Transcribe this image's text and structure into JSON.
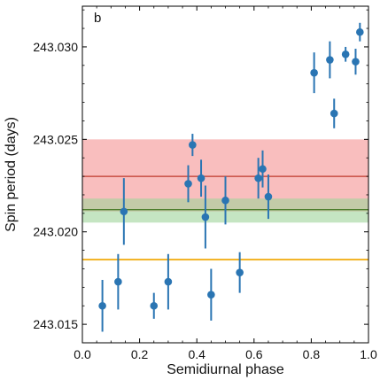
{
  "chart_data": {
    "type": "scatter",
    "panel_label": "b",
    "xlabel": "Semidiurnal phase",
    "ylabel": "Spin period (days)",
    "xlim": [
      0.0,
      1.0
    ],
    "ylim": [
      243.014,
      243.0322
    ],
    "x_ticks": [
      0.0,
      0.2,
      0.4,
      0.6,
      0.8,
      1.0
    ],
    "x_tick_labels": [
      "0.0",
      "0.2",
      "0.4",
      "0.6",
      "0.8",
      "1.0"
    ],
    "y_ticks": [
      243.015,
      243.02,
      243.025,
      243.03
    ],
    "y_tick_labels": [
      "243.015",
      "243.020",
      "243.025",
      "243.030"
    ],
    "grid": false,
    "point_color": "#2a75b3",
    "points": [
      {
        "x": 0.07,
        "y": 243.016,
        "err": 0.0014
      },
      {
        "x": 0.125,
        "y": 243.0173,
        "err": 0.0015
      },
      {
        "x": 0.145,
        "y": 243.0211,
        "err": 0.0018
      },
      {
        "x": 0.25,
        "y": 243.016,
        "err": 0.0007
      },
      {
        "x": 0.3,
        "y": 243.0173,
        "err": 0.0015
      },
      {
        "x": 0.37,
        "y": 243.0226,
        "err": 0.001
      },
      {
        "x": 0.385,
        "y": 243.0247,
        "err": 0.0006
      },
      {
        "x": 0.415,
        "y": 243.0229,
        "err": 0.001
      },
      {
        "x": 0.43,
        "y": 243.0208,
        "err": 0.0017
      },
      {
        "x": 0.45,
        "y": 243.0166,
        "err": 0.0014
      },
      {
        "x": 0.5,
        "y": 243.0217,
        "err": 0.0013
      },
      {
        "x": 0.55,
        "y": 243.0178,
        "err": 0.0011
      },
      {
        "x": 0.615,
        "y": 243.0229,
        "err": 0.0011
      },
      {
        "x": 0.63,
        "y": 243.0234,
        "err": 0.001
      },
      {
        "x": 0.65,
        "y": 243.0219,
        "err": 0.0012
      },
      {
        "x": 0.81,
        "y": 243.0286,
        "err": 0.0011
      },
      {
        "x": 0.865,
        "y": 243.0293,
        "err": 0.001
      },
      {
        "x": 0.88,
        "y": 243.0264,
        "err": 0.0008
      },
      {
        "x": 0.92,
        "y": 243.0296,
        "err": 0.0004
      },
      {
        "x": 0.955,
        "y": 243.0292,
        "err": 0.0007
      },
      {
        "x": 0.97,
        "y": 243.0308,
        "err": 0.0005
      }
    ],
    "bands": [
      {
        "center": 243.023,
        "low": 243.0211,
        "high": 243.025,
        "line_color": "#c0392b",
        "fill_color": "#f7a8a8",
        "fill_opacity": 0.75
      },
      {
        "center": 243.0212,
        "low": 243.0205,
        "high": 243.0218,
        "line_color": "#4f7f2f",
        "fill_color": "#9fd39a",
        "fill_opacity": 0.6
      },
      {
        "center": 243.0185,
        "low": 243.01845,
        "high": 243.01855,
        "line_color": "#f0a500",
        "fill_color": "#f7cf6a",
        "fill_opacity": 0.8
      }
    ]
  }
}
